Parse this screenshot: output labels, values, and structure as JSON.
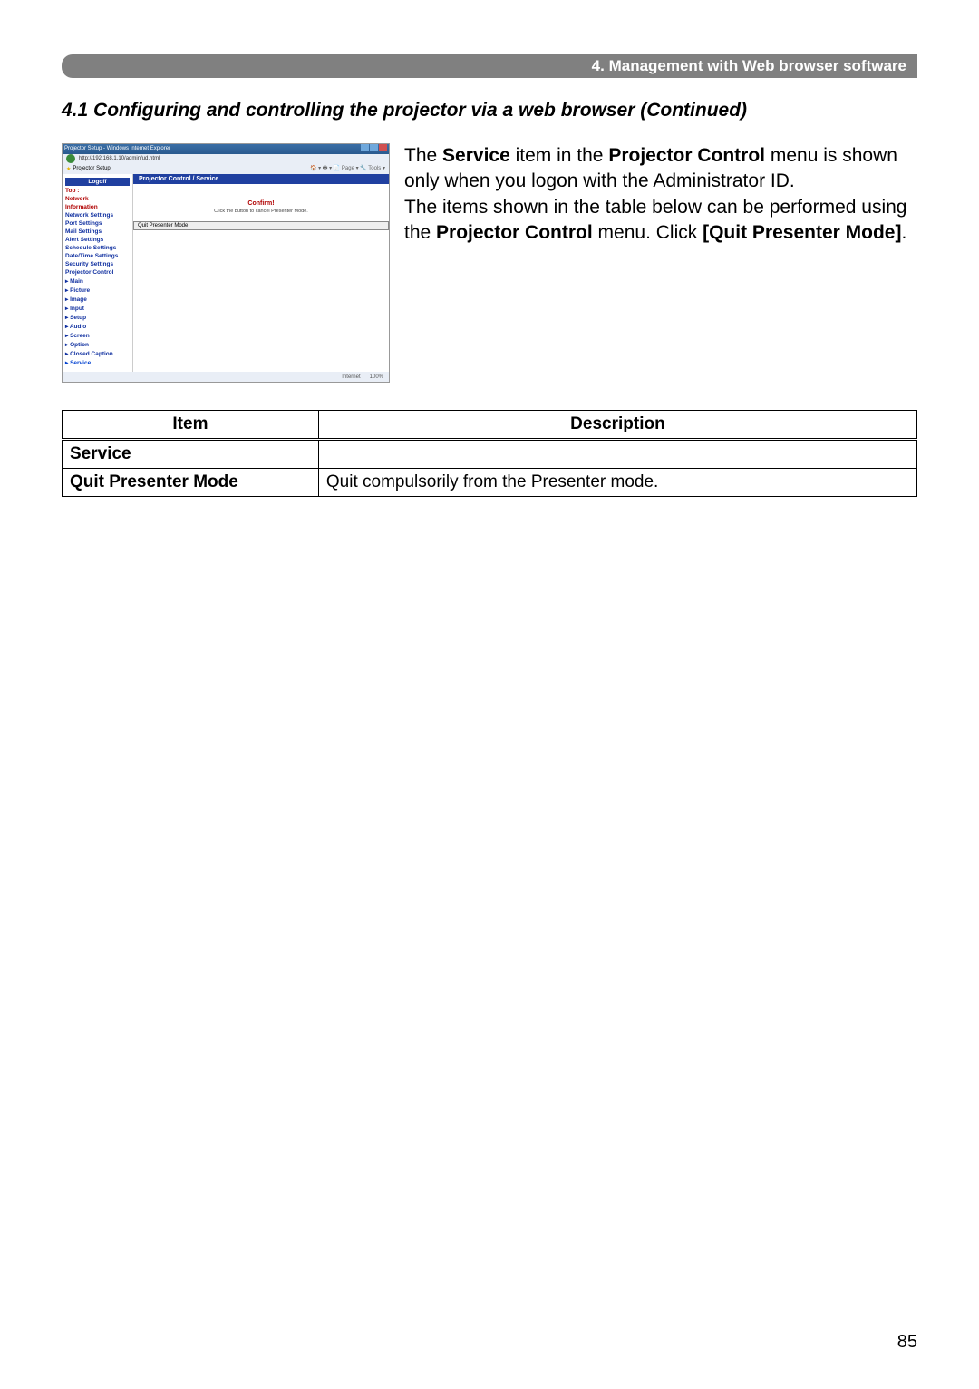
{
  "header": "4. Management with Web browser software",
  "section_title": "4.1 Configuring and controlling the projector via a web browser (Continued)",
  "body": {
    "p1_pre": "The ",
    "p1_b1": "Service",
    "p1_mid": " item in the ",
    "p1_b2": "Projector Control",
    "p1_post": " menu is shown only when you logon with the Administrator ID.",
    "p2_pre": "The items shown in the table below can be performed using the ",
    "p2_b1": "Projector Control",
    "p2_post": " menu. Click ",
    "p2_b2": "[Quit Presenter Mode]",
    "p2_end": "."
  },
  "screenshot": {
    "window_title": "Projector Setup - Windows Internet Explorer",
    "url": "http://192.168.1.10/admin/ud.html",
    "tab": "Projector Setup",
    "tools": "🏠 ▾  🖶 ▾  📄 Page ▾  🔧 Tools ▾",
    "sidebar": {
      "logoff": "Logoff",
      "items": [
        "Top :",
        "Network",
        "Information",
        "Network Settings",
        "Port Settings",
        "Mail Settings",
        "Alert Settings",
        "Schedule Settings",
        "Date/Time Settings",
        "Security Settings",
        "Projector Control",
        "▸ Main",
        "▸ Picture",
        "▸ Image",
        "▸ Input",
        "▸ Setup",
        "▸ Audio",
        "▸ Screen",
        "▸ Option",
        "▸ Closed Caption",
        "▸ Service"
      ]
    },
    "main": {
      "heading": "Projector Control / Service",
      "confirm": "Confirm!",
      "confirm_sub": "Click the button to cancel Presenter Mode.",
      "button": "Quit Presenter Mode"
    },
    "status": {
      "internet": "Internet",
      "zoom": "100%"
    }
  },
  "table": {
    "headers": [
      "Item",
      "Description"
    ],
    "rows": [
      {
        "item": "Service",
        "desc": ""
      },
      {
        "item": "Quit Presenter Mode",
        "desc": "Quit compulsorily from the Presenter mode."
      }
    ]
  },
  "page_number": "85"
}
